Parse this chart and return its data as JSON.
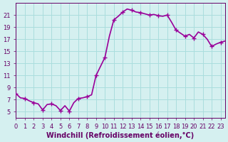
{
  "x": [
    0,
    0.5,
    1,
    1.5,
    2,
    2.5,
    3,
    3.5,
    4,
    4.5,
    5,
    5.5,
    6,
    6.5,
    7,
    7.5,
    8,
    8.5,
    9,
    9.5,
    10,
    10.5,
    11,
    11.5,
    12,
    12.5,
    13,
    13.5,
    14,
    14.5,
    15,
    15.5,
    16,
    16.5,
    17,
    17.5,
    18,
    18.5,
    19,
    19.5,
    20,
    20.5,
    21,
    21.5,
    22,
    22.5,
    23,
    23.5
  ],
  "y": [
    8.0,
    7.3,
    7.2,
    6.8,
    6.5,
    6.3,
    5.3,
    6.2,
    6.3,
    6.0,
    5.2,
    6.0,
    5.1,
    6.5,
    7.2,
    7.3,
    7.5,
    7.8,
    11.0,
    12.5,
    14.0,
    17.5,
    20.2,
    20.8,
    21.5,
    22.0,
    21.8,
    21.5,
    21.4,
    21.2,
    21.0,
    21.1,
    20.9,
    20.8,
    21.0,
    19.8,
    18.5,
    18.0,
    17.5,
    17.8,
    17.2,
    18.2,
    17.8,
    17.0,
    15.8,
    16.2,
    16.5,
    16.7
  ],
  "line_color": "#990099",
  "marker": "+",
  "marker_every": 2,
  "bg_color": "#d5f0f0",
  "grid_color": "#aadddd",
  "tick_color": "#660066",
  "label_color": "#660066",
  "xlabel": "Windchill (Refroidissement éolien,°C)",
  "xlim": [
    0,
    23.5
  ],
  "ylim": [
    4,
    23
  ],
  "xticks": [
    0,
    1,
    2,
    3,
    4,
    5,
    6,
    7,
    8,
    9,
    10,
    11,
    12,
    13,
    14,
    15,
    16,
    17,
    18,
    19,
    20,
    21,
    22,
    23
  ],
  "yticks": [
    5,
    7,
    9,
    11,
    13,
    15,
    17,
    19,
    21
  ],
  "xlabel_fontsize": 7,
  "tick_fontsize": 6,
  "linewidth": 1.2,
  "marker_size": 4
}
